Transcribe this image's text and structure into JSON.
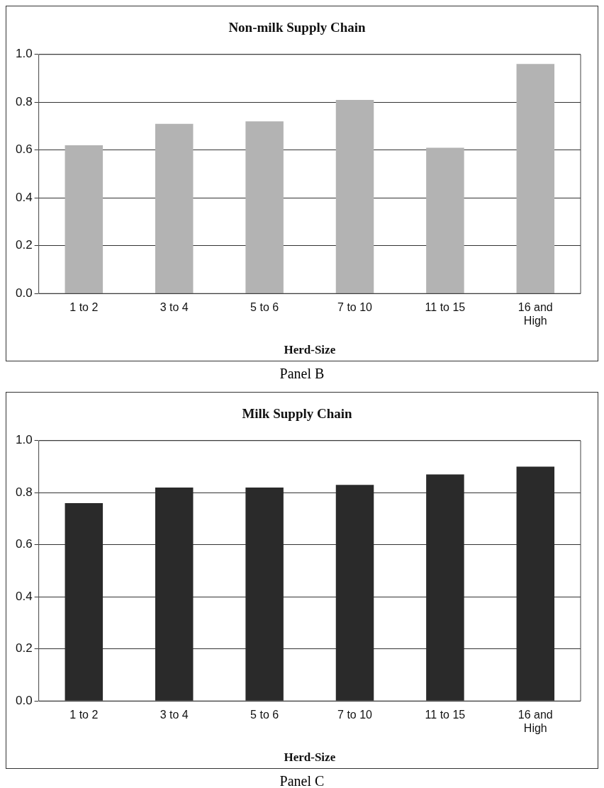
{
  "chart_data": [
    {
      "type": "bar",
      "title": "Non-milk Supply Chain",
      "xlabel": "Herd-Size",
      "categories": [
        "1 to 2",
        "3 to 4",
        "5 to 6",
        "7 to 10",
        "11 to 15",
        "16 and High"
      ],
      "values": [
        0.62,
        0.71,
        0.72,
        0.81,
        0.61,
        0.96
      ],
      "color": "#b3b3b3",
      "ylim": [
        0,
        1
      ],
      "yticks": [
        {
          "value": 0,
          "label": "0.0"
        },
        {
          "value": 0.2,
          "label": "0.2"
        },
        {
          "value": 0.4,
          "label": "0.4"
        },
        {
          "value": 0.6,
          "label": "0.6"
        },
        {
          "value": 0.8,
          "label": "0.8"
        },
        {
          "value": 1,
          "label": "1.0"
        }
      ],
      "grid": "y",
      "legend": false,
      "annotations": [
        "Panel B"
      ]
    },
    {
      "type": "bar",
      "title": "Milk Supply Chain",
      "xlabel": "Herd-Size",
      "categories": [
        "1 to 2",
        "3 to 4",
        "5 to 6",
        "7 to 10",
        "11 to 15",
        "16 and High"
      ],
      "values": [
        0.76,
        0.82,
        0.82,
        0.83,
        0.87,
        0.9
      ],
      "color": "#2a2a2a",
      "ylim": [
        0,
        1
      ],
      "yticks": [
        {
          "value": 0,
          "label": "0.0"
        },
        {
          "value": 0.2,
          "label": "0.2"
        },
        {
          "value": 0.4,
          "label": "0.4"
        },
        {
          "value": 0.6,
          "label": "0.6"
        },
        {
          "value": 0.8,
          "label": "0.8"
        },
        {
          "value": 1,
          "label": "1.0"
        }
      ],
      "grid": "y",
      "legend": false,
      "annotations": [
        "Panel C"
      ]
    }
  ]
}
